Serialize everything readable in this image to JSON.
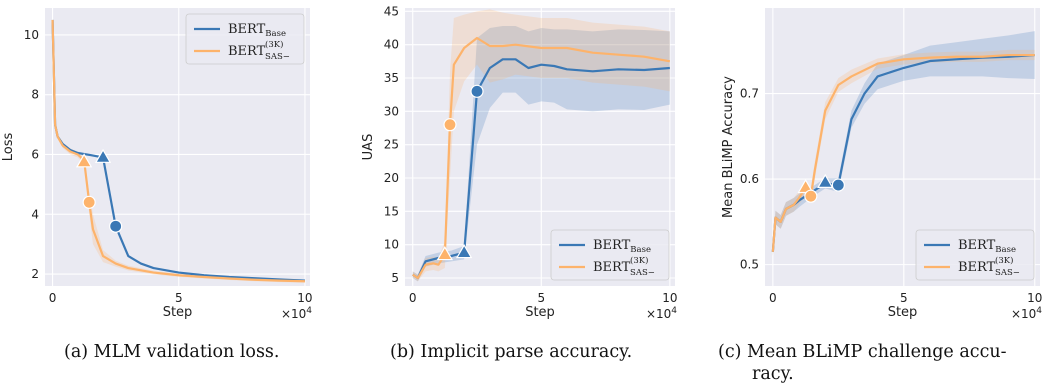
{
  "chart_data": [
    {
      "type": "line",
      "ylabel": "Loss",
      "xlabel": "Step",
      "x_multiplier": "×10",
      "x_multiplier_exp": "4",
      "xlim": [
        -0.3,
        10.2
      ],
      "ylim": [
        1.6,
        10.9
      ],
      "xticks": [
        0,
        5,
        10
      ],
      "yticks": [
        2,
        4,
        6,
        8,
        10
      ],
      "legend_position": "upper right",
      "grid": true,
      "series": [
        {
          "name": "BERT_Base",
          "color": "#3a78b5",
          "x": [
            0,
            0.1,
            0.2,
            0.4,
            0.7,
            1.0,
            1.5,
            2.0,
            2.5,
            3.0,
            3.5,
            4.0,
            5.0,
            6.0,
            7.0,
            8.0,
            9.0,
            10.0
          ],
          "y": [
            10.5,
            7.0,
            6.6,
            6.35,
            6.15,
            6.05,
            5.98,
            5.9,
            3.6,
            2.6,
            2.35,
            2.2,
            2.05,
            1.96,
            1.9,
            1.86,
            1.82,
            1.78
          ],
          "band": null,
          "markers": [
            {
              "shape": "triangle",
              "x": 2.0,
              "y": 5.9
            },
            {
              "shape": "circle",
              "x": 2.5,
              "y": 3.6
            }
          ]
        },
        {
          "name": "BERT_SAS-^(3K)",
          "color": "#fdb36b",
          "x": [
            0,
            0.1,
            0.2,
            0.4,
            0.7,
            1.0,
            1.25,
            1.45,
            1.6,
            2.0,
            2.5,
            3.0,
            4.0,
            5.0,
            6.0,
            7.0,
            8.0,
            9.0,
            10.0
          ],
          "y": [
            10.5,
            7.0,
            6.6,
            6.3,
            6.1,
            6.0,
            5.8,
            4.4,
            3.5,
            2.6,
            2.35,
            2.2,
            2.05,
            1.96,
            1.9,
            1.85,
            1.81,
            1.78,
            1.76
          ],
          "band": [
            0.05,
            0.05,
            0.08,
            0.08,
            0.1,
            0.1,
            0.15,
            0.35,
            0.5,
            0.2,
            0.1,
            0.08,
            0.06,
            0.05,
            0.05,
            0.05,
            0.05,
            0.05,
            0.05
          ],
          "markers": [
            {
              "shape": "triangle",
              "x": 1.25,
              "y": 5.75
            },
            {
              "shape": "circle",
              "x": 1.45,
              "y": 4.4
            }
          ]
        }
      ]
    },
    {
      "type": "line",
      "ylabel": "UAS",
      "xlabel": "Step",
      "x_multiplier": "×10",
      "x_multiplier_exp": "4",
      "xlim": [
        -0.3,
        10.2
      ],
      "ylim": [
        3.8,
        45.5
      ],
      "xticks": [
        0,
        5,
        10
      ],
      "yticks": [
        5,
        10,
        15,
        20,
        25,
        30,
        35,
        40,
        45
      ],
      "legend_position": "lower right",
      "grid": true,
      "series": [
        {
          "name": "BERT_Base",
          "color": "#3a78b5",
          "x": [
            0,
            0.2,
            0.5,
            1.0,
            1.5,
            2.0,
            2.5,
            3.0,
            3.5,
            4.0,
            4.5,
            5.0,
            5.5,
            6.0,
            7.0,
            8.0,
            9.0,
            10.0
          ],
          "y": [
            5.5,
            5.0,
            7.5,
            8.0,
            8.3,
            8.8,
            33.0,
            36.5,
            37.8,
            37.8,
            36.5,
            37.0,
            36.8,
            36.3,
            36.0,
            36.3,
            36.2,
            36.5
          ],
          "band": [
            0.5,
            0.5,
            0.8,
            0.8,
            0.8,
            1.0,
            8.0,
            6.0,
            5.0,
            5.0,
            5.5,
            5.5,
            5.5,
            6.0,
            6.0,
            6.0,
            6.0,
            5.5
          ],
          "markers": [
            {
              "shape": "triangle",
              "x": 2.0,
              "y": 8.8
            },
            {
              "shape": "circle",
              "x": 2.5,
              "y": 33.0
            }
          ]
        },
        {
          "name": "BERT_SAS-^(3K)",
          "color": "#fdb36b",
          "x": [
            0,
            0.2,
            0.5,
            0.8,
            1.0,
            1.25,
            1.45,
            1.6,
            2.0,
            2.5,
            3.0,
            3.5,
            4.0,
            5.0,
            6.0,
            7.0,
            8.0,
            9.0,
            10.0
          ],
          "y": [
            5.5,
            5.0,
            7.0,
            7.2,
            7.0,
            8.5,
            28.0,
            37.0,
            39.5,
            41.0,
            39.8,
            39.8,
            40.0,
            39.5,
            39.5,
            38.8,
            38.5,
            38.2,
            37.5
          ],
          "band": [
            0.5,
            0.5,
            1.0,
            1.0,
            1.0,
            2.0,
            8.0,
            7.0,
            5.0,
            4.0,
            5.5,
            5.0,
            4.5,
            4.5,
            4.5,
            4.5,
            4.5,
            4.5,
            4.5
          ],
          "markers": [
            {
              "shape": "triangle",
              "x": 1.25,
              "y": 8.5
            },
            {
              "shape": "circle",
              "x": 1.45,
              "y": 28.0
            }
          ]
        }
      ]
    },
    {
      "type": "line",
      "ylabel": "Mean BLiMP Accuracy",
      "xlabel": "Step",
      "x_multiplier": "×10",
      "x_multiplier_exp": "4",
      "xlim": [
        -0.3,
        10.2
      ],
      "ylim": [
        0.475,
        0.8
      ],
      "xticks": [
        0,
        5,
        10
      ],
      "yticks": [
        0.5,
        0.6,
        0.7
      ],
      "legend_position": "lower right",
      "grid": true,
      "series": [
        {
          "name": "BERT_Base",
          "color": "#3a78b5",
          "x": [
            0,
            0.1,
            0.3,
            0.5,
            0.8,
            1.0,
            1.5,
            2.0,
            2.5,
            3.0,
            3.5,
            4.0,
            5.0,
            6.0,
            7.0,
            8.0,
            9.0,
            10.0
          ],
          "y": [
            0.515,
            0.555,
            0.55,
            0.565,
            0.57,
            0.575,
            0.585,
            0.595,
            0.593,
            0.67,
            0.7,
            0.72,
            0.73,
            0.738,
            0.74,
            0.742,
            0.743,
            0.745
          ],
          "band": [
            0.005,
            0.008,
            0.008,
            0.008,
            0.008,
            0.008,
            0.006,
            0.006,
            0.008,
            0.01,
            0.012,
            0.015,
            0.015,
            0.018,
            0.02,
            0.022,
            0.025,
            0.028
          ],
          "markers": [
            {
              "shape": "triangle",
              "x": 2.0,
              "y": 0.596
            },
            {
              "shape": "circle",
              "x": 2.5,
              "y": 0.593
            }
          ]
        },
        {
          "name": "BERT_SAS-^(3K)",
          "color": "#fdb36b",
          "x": [
            0,
            0.1,
            0.3,
            0.5,
            0.8,
            1.0,
            1.25,
            1.45,
            1.6,
            2.0,
            2.5,
            3.0,
            4.0,
            5.0,
            6.0,
            7.0,
            8.0,
            9.0,
            10.0
          ],
          "y": [
            0.515,
            0.555,
            0.55,
            0.565,
            0.57,
            0.578,
            0.59,
            0.58,
            0.61,
            0.68,
            0.71,
            0.72,
            0.735,
            0.74,
            0.742,
            0.743,
            0.743,
            0.745,
            0.745
          ],
          "band": [
            0.005,
            0.008,
            0.008,
            0.008,
            0.008,
            0.008,
            0.008,
            0.008,
            0.01,
            0.01,
            0.008,
            0.008,
            0.006,
            0.006,
            0.006,
            0.006,
            0.006,
            0.006,
            0.006
          ],
          "markers": [
            {
              "shape": "triangle",
              "x": 1.25,
              "y": 0.59
            },
            {
              "shape": "circle",
              "x": 1.45,
              "y": 0.58
            }
          ]
        }
      ]
    }
  ],
  "legend": {
    "base_main": "BERT",
    "base_sub": "Base",
    "sas_main": "BERT",
    "sas_sup": "(3K)",
    "sas_sub": "SAS−"
  },
  "captions": {
    "a": "(a)  MLM validation loss.",
    "b": "(b)  Implicit parse accuracy.",
    "c1": "(c)  Mean BLiMP challenge accu-",
    "c2": "racy."
  }
}
